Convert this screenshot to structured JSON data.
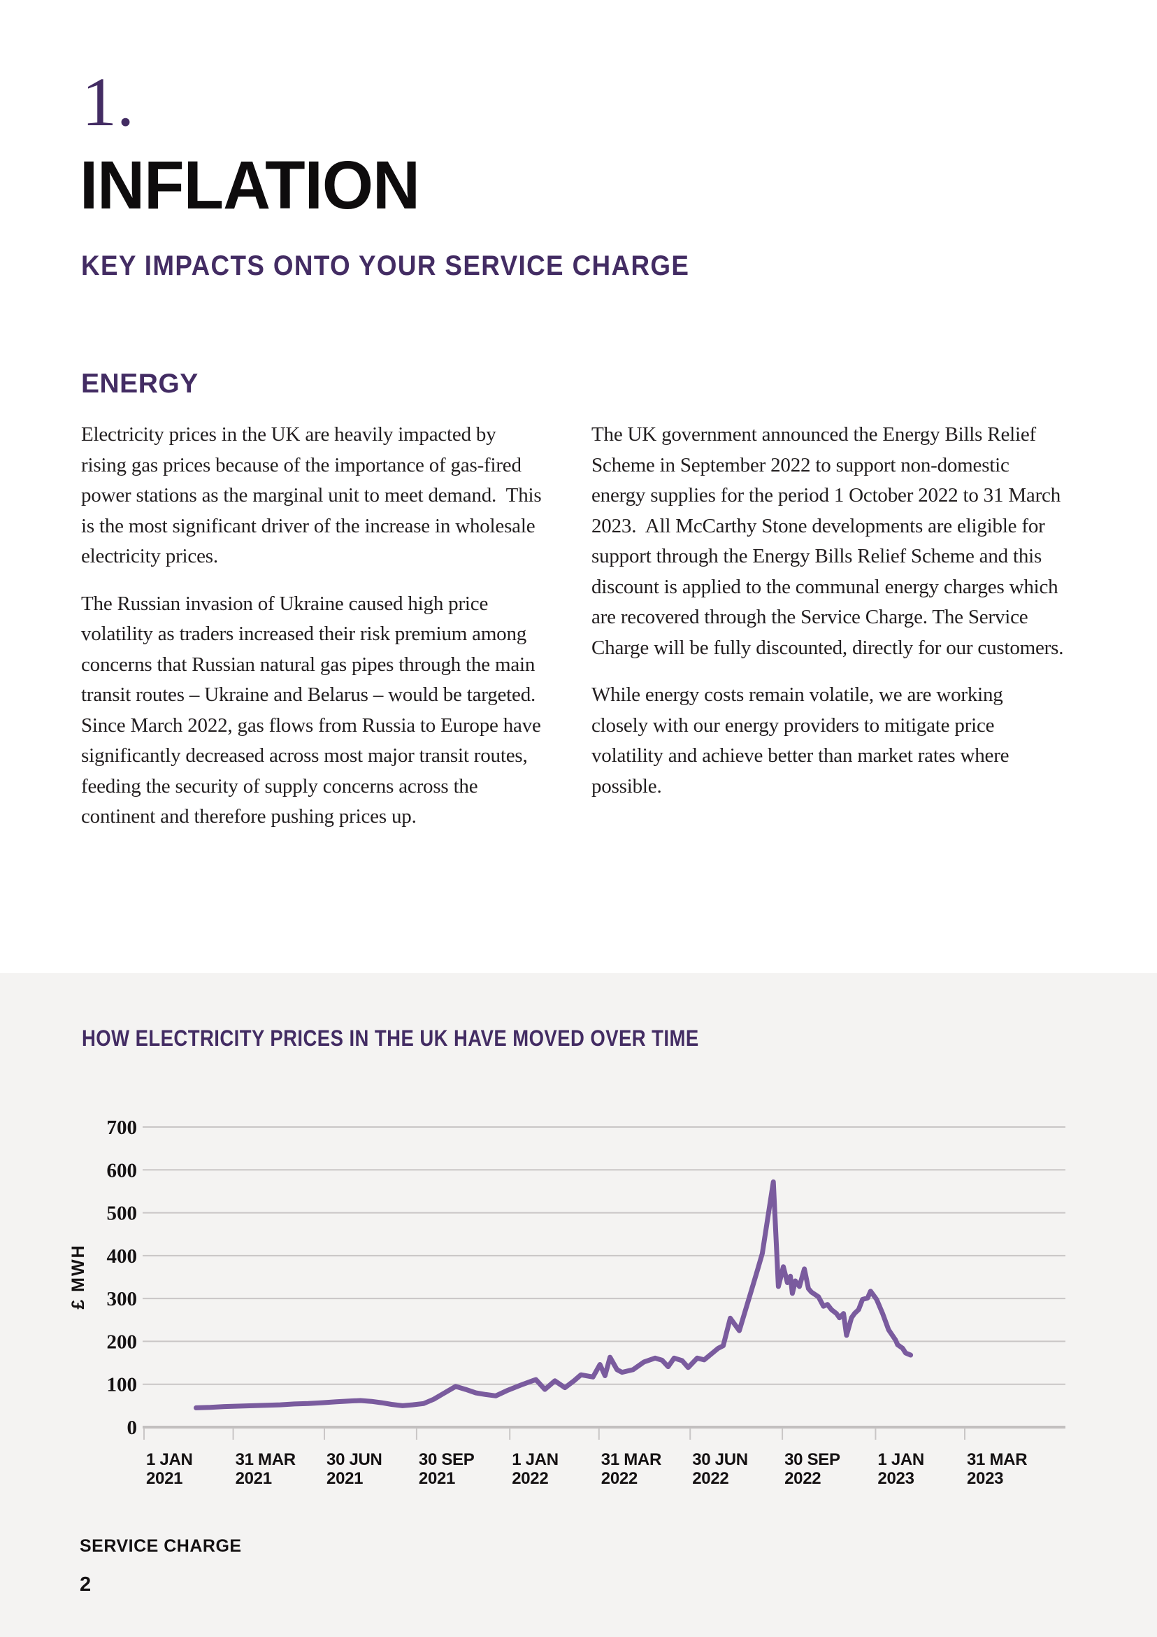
{
  "page": {
    "section_number": "1.",
    "title": "INFLATION",
    "subtitle": "KEY IMPACTS ONTO YOUR SERVICE CHARGE",
    "section_heading": "ENERGY",
    "footer_label": "SERVICE CHARGE",
    "page_number": "2"
  },
  "columns": {
    "left": [
      "Electricity prices in the UK are heavily impacted by rising gas prices because of the importance of gas-fired power stations as the marginal unit to meet demand.  This is the most significant driver of the increase in wholesale electricity prices.",
      "The Russian invasion of Ukraine caused high price volatility as traders increased their risk premium among concerns that Russian natural gas pipes through the main transit routes – Ukraine and Belarus – would be targeted. Since March 2022, gas flows from Russia to Europe have significantly decreased across most major transit routes, feeding the security of supply concerns across the continent and therefore pushing prices up."
    ],
    "right": [
      "The UK government announced the Energy Bills Relief Scheme in September 2022 to support non-domestic energy supplies for the period 1 October 2022 to 31 March 2023.  All McCarthy Stone developments are eligible for support through the Energy Bills Relief Scheme and this discount is applied to the communal energy charges which are recovered through the Service Charge. The Service Charge will be fully discounted, directly for our customers.",
      "While energy costs remain volatile, we are working closely with our energy providers to mitigate price volatility and achieve better than market rates where possible."
    ]
  },
  "chart_data": {
    "type": "line",
    "title": "HOW ELECTRICITY PRICES IN THE UK HAVE MOVED OVER TIME",
    "xlabel": "",
    "ylabel": "£ MWH",
    "ylim": [
      0,
      700
    ],
    "ytick_step": 100,
    "xlim": [
      "2021-01-01",
      "2023-03-31"
    ],
    "grid": true,
    "legend_position": "none",
    "colors": {
      "line": "#7a5b9e",
      "grid": "#c9c6c6",
      "axis": "#c2bfbf",
      "band_background": "#f4f3f2",
      "tick_label": "#141112"
    },
    "x_ticks": [
      {
        "date": "2021-01-01",
        "line1": "1 JAN",
        "line2": "2021"
      },
      {
        "date": "2021-03-31",
        "line1": "31 MAR",
        "line2": "2021"
      },
      {
        "date": "2021-06-30",
        "line1": "30 JUN",
        "line2": "2021"
      },
      {
        "date": "2021-09-30",
        "line1": "30 SEP",
        "line2": "2021"
      },
      {
        "date": "2022-01-01",
        "line1": "1 JAN",
        "line2": "2022"
      },
      {
        "date": "2022-03-31",
        "line1": "31 MAR",
        "line2": "2022"
      },
      {
        "date": "2022-06-30",
        "line1": "30 JUN",
        "line2": "2022"
      },
      {
        "date": "2022-09-30",
        "line1": "30 SEP",
        "line2": "2022"
      },
      {
        "date": "2023-01-01",
        "line1": "1 JAN",
        "line2": "2023"
      },
      {
        "date": "2023-03-31",
        "line1": "31 MAR",
        "line2": "2023"
      }
    ],
    "series": [
      {
        "name": "",
        "color": "#7a5b9e",
        "points": [
          [
            "2021-02-22",
            45
          ],
          [
            "2021-03-08",
            46
          ],
          [
            "2021-03-22",
            48
          ],
          [
            "2021-04-05",
            49
          ],
          [
            "2021-04-19",
            50
          ],
          [
            "2021-05-03",
            51
          ],
          [
            "2021-05-17",
            52
          ],
          [
            "2021-05-31",
            54
          ],
          [
            "2021-06-14",
            55
          ],
          [
            "2021-06-28",
            57
          ],
          [
            "2021-07-12",
            59
          ],
          [
            "2021-07-26",
            61
          ],
          [
            "2021-08-05",
            62
          ],
          [
            "2021-08-16",
            60
          ],
          [
            "2021-08-26",
            57
          ],
          [
            "2021-09-05",
            53
          ],
          [
            "2021-09-16",
            50
          ],
          [
            "2021-09-26",
            52
          ],
          [
            "2021-10-07",
            55
          ],
          [
            "2021-10-17",
            65
          ],
          [
            "2021-10-28",
            80
          ],
          [
            "2021-11-08",
            95
          ],
          [
            "2021-11-18",
            88
          ],
          [
            "2021-11-28",
            80
          ],
          [
            "2021-12-08",
            76
          ],
          [
            "2021-12-18",
            73
          ],
          [
            "2021-12-29",
            85
          ],
          [
            "2022-01-12",
            98
          ],
          [
            "2022-01-27",
            111
          ],
          [
            "2022-02-05",
            88
          ],
          [
            "2022-02-15",
            108
          ],
          [
            "2022-02-25",
            92
          ],
          [
            "2022-03-06",
            108
          ],
          [
            "2022-03-13",
            122
          ],
          [
            "2022-03-25",
            117
          ],
          [
            "2022-04-01",
            146
          ],
          [
            "2022-04-06",
            120
          ],
          [
            "2022-04-11",
            163
          ],
          [
            "2022-04-18",
            134
          ],
          [
            "2022-04-23",
            128
          ],
          [
            "2022-05-04",
            134
          ],
          [
            "2022-05-15",
            152
          ],
          [
            "2022-05-26",
            161
          ],
          [
            "2022-06-02",
            156
          ],
          [
            "2022-06-08",
            141
          ],
          [
            "2022-06-14",
            161
          ],
          [
            "2022-06-22",
            155
          ],
          [
            "2022-06-28",
            139
          ],
          [
            "2022-07-07",
            161
          ],
          [
            "2022-07-14",
            157
          ],
          [
            "2022-07-28",
            184
          ],
          [
            "2022-08-02",
            190
          ],
          [
            "2022-08-09",
            254
          ],
          [
            "2022-08-18",
            225
          ],
          [
            "2022-08-29",
            310
          ],
          [
            "2022-09-05",
            365
          ],
          [
            "2022-09-10",
            405
          ],
          [
            "2022-09-21",
            572
          ],
          [
            "2022-09-26",
            328
          ],
          [
            "2022-10-01",
            374
          ],
          [
            "2022-10-05",
            337
          ],
          [
            "2022-10-08",
            352
          ],
          [
            "2022-10-10",
            312
          ],
          [
            "2022-10-13",
            341
          ],
          [
            "2022-10-17",
            328
          ],
          [
            "2022-10-22",
            369
          ],
          [
            "2022-10-26",
            323
          ],
          [
            "2022-10-29",
            315
          ],
          [
            "2022-11-05",
            304
          ],
          [
            "2022-11-10",
            282
          ],
          [
            "2022-11-14",
            286
          ],
          [
            "2022-11-18",
            274
          ],
          [
            "2022-11-23",
            265
          ],
          [
            "2022-11-26",
            255
          ],
          [
            "2022-11-30",
            265
          ],
          [
            "2022-12-03",
            214
          ],
          [
            "2022-12-08",
            255
          ],
          [
            "2022-12-11",
            265
          ],
          [
            "2022-12-15",
            274
          ],
          [
            "2022-12-19",
            298
          ],
          [
            "2022-12-24",
            301
          ],
          [
            "2022-12-27",
            317
          ],
          [
            "2023-01-02",
            298
          ],
          [
            "2023-01-08",
            265
          ],
          [
            "2023-01-14",
            227
          ],
          [
            "2023-01-21",
            203
          ],
          [
            "2023-01-23",
            192
          ],
          [
            "2023-01-28",
            184
          ],
          [
            "2023-01-31",
            173
          ],
          [
            "2023-02-05",
            168
          ]
        ]
      }
    ]
  }
}
